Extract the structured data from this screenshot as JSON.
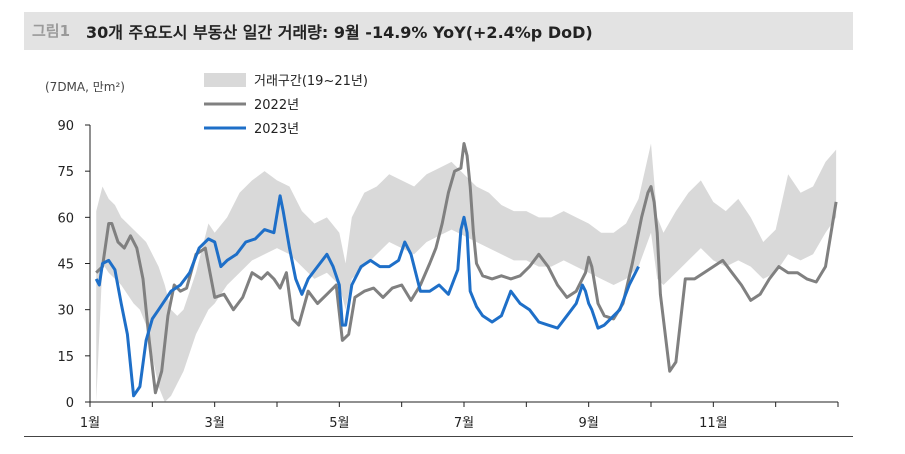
{
  "figure": {
    "label": "그림1",
    "title": "30개 주요도시 부동산 일간 거래량: 9월 -14.9% YoY(+2.4%p DoD)"
  },
  "chart_data": {
    "type": "line",
    "unit_label": "(7DMA, 만m²)",
    "ylim": [
      0,
      90
    ],
    "yticks": [
      0,
      15,
      30,
      45,
      60,
      75,
      90
    ],
    "xlim": [
      1,
      13
    ],
    "xticks": [
      {
        "value": 1,
        "label": "1월"
      },
      {
        "value": 3,
        "label": "3월"
      },
      {
        "value": 5,
        "label": "5월"
      },
      {
        "value": 7,
        "label": "7월"
      },
      {
        "value": 9,
        "label": "9월"
      },
      {
        "value": 11,
        "label": "11월"
      }
    ],
    "grid": false,
    "legend_position": "top-center",
    "colors": {
      "band": "#d9d9d9",
      "y2022": "#808080",
      "y2023": "#1e6fc8"
    },
    "band": {
      "name": "거래구간(19~21년)",
      "x": [
        1.1,
        1.2,
        1.3,
        1.4,
        1.5,
        1.6,
        1.7,
        1.8,
        1.9,
        2.0,
        2.1,
        2.2,
        2.3,
        2.4,
        2.5,
        2.6,
        2.7,
        2.8,
        2.9,
        3.0,
        3.2,
        3.4,
        3.6,
        3.8,
        4.0,
        4.2,
        4.4,
        4.6,
        4.8,
        5.0,
        5.1,
        5.2,
        5.4,
        5.6,
        5.8,
        6.0,
        6.2,
        6.4,
        6.6,
        6.8,
        7.0,
        7.2,
        7.4,
        7.6,
        7.8,
        8.0,
        8.2,
        8.4,
        8.6,
        8.8,
        9.0,
        9.2,
        9.4,
        9.6,
        9.8,
        10.0,
        10.1,
        10.2,
        10.4,
        10.6,
        10.8,
        11.0,
        11.2,
        11.4,
        11.6,
        11.8,
        12.0,
        12.2,
        12.4,
        12.6,
        12.8,
        12.97
      ],
      "high": [
        62,
        70,
        66,
        64,
        60,
        58,
        56,
        54,
        52,
        48,
        44,
        38,
        30,
        28,
        30,
        36,
        42,
        50,
        58,
        55,
        60,
        68,
        72,
        75,
        72,
        70,
        62,
        58,
        60,
        55,
        45,
        60,
        68,
        70,
        74,
        72,
        70,
        74,
        76,
        78,
        74,
        70,
        68,
        64,
        62,
        62,
        60,
        60,
        62,
        60,
        58,
        55,
        55,
        58,
        66,
        84,
        60,
        55,
        62,
        68,
        72,
        65,
        62,
        66,
        60,
        52,
        56,
        74,
        68,
        70,
        78,
        82
      ],
      "low": [
        0,
        45,
        42,
        40,
        38,
        35,
        32,
        30,
        25,
        15,
        5,
        0,
        2,
        6,
        10,
        16,
        22,
        26,
        30,
        32,
        38,
        42,
        46,
        48,
        50,
        48,
        44,
        40,
        42,
        38,
        30,
        40,
        44,
        48,
        52,
        50,
        48,
        52,
        54,
        56,
        54,
        52,
        50,
        48,
        46,
        46,
        44,
        44,
        46,
        44,
        42,
        40,
        38,
        40,
        44,
        55,
        40,
        38,
        42,
        46,
        50,
        46,
        44,
        46,
        44,
        40,
        42,
        48,
        46,
        48,
        55,
        60
      ]
    },
    "series": [
      {
        "name": "2022년",
        "x": [
          1.1,
          1.2,
          1.3,
          1.35,
          1.45,
          1.55,
          1.65,
          1.75,
          1.85,
          1.95,
          2.05,
          2.15,
          2.25,
          2.35,
          2.45,
          2.55,
          2.7,
          2.85,
          3.0,
          3.15,
          3.3,
          3.45,
          3.6,
          3.75,
          3.85,
          3.95,
          4.05,
          4.15,
          4.25,
          4.35,
          4.5,
          4.65,
          4.8,
          4.95,
          5.05,
          5.15,
          5.25,
          5.4,
          5.55,
          5.7,
          5.85,
          6.0,
          6.15,
          6.3,
          6.45,
          6.55,
          6.65,
          6.75,
          6.85,
          6.95,
          7.0,
          7.05,
          7.1,
          7.15,
          7.2,
          7.3,
          7.45,
          7.6,
          7.75,
          7.9,
          8.05,
          8.2,
          8.35,
          8.5,
          8.65,
          8.8,
          8.95,
          9.0,
          9.05,
          9.15,
          9.25,
          9.4,
          9.55,
          9.7,
          9.85,
          9.95,
          10.0,
          10.05,
          10.1,
          10.15,
          10.3,
          10.4,
          10.55,
          10.7,
          10.85,
          11.0,
          11.15,
          11.3,
          11.45,
          11.6,
          11.75,
          11.9,
          12.05,
          12.2,
          12.35,
          12.5,
          12.65,
          12.8,
          12.97
        ],
        "values": [
          42,
          44,
          58,
          58,
          52,
          50,
          54,
          50,
          40,
          20,
          3,
          10,
          28,
          38,
          36,
          37,
          48,
          50,
          34,
          35,
          30,
          34,
          42,
          40,
          42,
          40,
          37,
          42,
          27,
          25,
          36,
          32,
          35,
          38,
          20,
          22,
          34,
          36,
          37,
          34,
          37,
          38,
          33,
          38,
          45,
          50,
          58,
          68,
          75,
          76,
          84,
          80,
          70,
          55,
          45,
          41,
          40,
          41,
          40,
          41,
          44,
          48,
          44,
          38,
          34,
          36,
          42,
          47,
          44,
          32,
          28,
          27,
          32,
          45,
          60,
          68,
          70,
          65,
          55,
          35,
          10,
          13,
          40,
          40,
          42,
          44,
          46,
          42,
          38,
          33,
          35,
          40,
          44,
          42,
          42,
          40,
          39,
          44,
          65
        ]
      },
      {
        "name": "2023년",
        "x": [
          1.1,
          1.15,
          1.2,
          1.3,
          1.4,
          1.5,
          1.6,
          1.7,
          1.8,
          1.9,
          2.0,
          2.1,
          2.2,
          2.3,
          2.45,
          2.6,
          2.75,
          2.9,
          3.0,
          3.1,
          3.2,
          3.35,
          3.5,
          3.65,
          3.8,
          3.95,
          4.05,
          4.1,
          4.2,
          4.3,
          4.4,
          4.5,
          4.65,
          4.8,
          4.9,
          5.0,
          5.05,
          5.1,
          5.2,
          5.35,
          5.5,
          5.65,
          5.8,
          5.95,
          6.05,
          6.15,
          6.3,
          6.45,
          6.6,
          6.75,
          6.9,
          6.95,
          7.0,
          7.05,
          7.1,
          7.2,
          7.3,
          7.45,
          7.6,
          7.75,
          7.9,
          8.05,
          8.2,
          8.35,
          8.5,
          8.65,
          8.8,
          8.9,
          8.95,
          9.0,
          9.05,
          9.15,
          9.25,
          9.35,
          9.5,
          9.65,
          9.8
        ],
        "values": [
          40,
          38,
          45,
          46,
          43,
          32,
          22,
          2,
          5,
          20,
          27,
          30,
          33,
          36,
          38,
          42,
          50,
          53,
          52,
          44,
          46,
          48,
          52,
          53,
          56,
          55,
          67,
          62,
          50,
          40,
          35,
          40,
          44,
          48,
          44,
          38,
          25,
          25,
          38,
          44,
          46,
          44,
          44,
          46,
          52,
          48,
          36,
          36,
          38,
          35,
          43,
          56,
          60,
          55,
          36,
          31,
          28,
          26,
          28,
          36,
          32,
          30,
          26,
          25,
          24,
          28,
          32,
          38,
          36,
          32,
          30,
          24,
          25,
          27,
          30,
          38,
          44
        ]
      }
    ]
  }
}
